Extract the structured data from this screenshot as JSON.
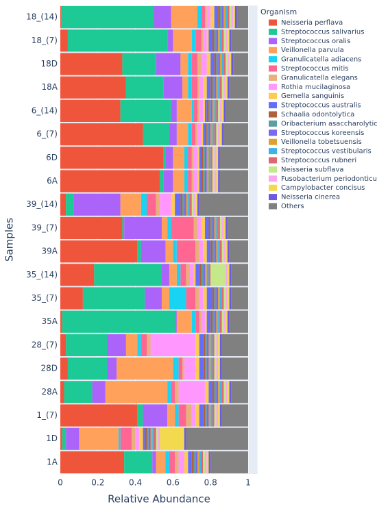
{
  "chart_data": {
    "type": "bar",
    "orientation": "horizontal",
    "stacked": true,
    "x_label": "Relative Abundance",
    "y_label": "Samples",
    "legend_title": "Organism",
    "legend_position": "right",
    "grid": true,
    "xlim": [
      0,
      1.05
    ],
    "xticks": [
      0,
      0.2,
      0.4,
      0.6,
      0.8,
      1
    ],
    "categories": [
      "18_(14)",
      "18_(7)",
      "18D",
      "18A",
      "6_(14)",
      "6_(7)",
      "6D",
      "6A",
      "39_(14)",
      "39_(7)",
      "39A",
      "35_(14)",
      "35_(7)",
      "35A",
      "28_(7)",
      "28D",
      "28A",
      "1_(7)",
      "1D",
      "1A"
    ],
    "series": [
      {
        "name": "Neisseria perflava",
        "color": "#EF553B",
        "values": [
          0.005,
          0.04,
          0.33,
          0.35,
          0.32,
          0.44,
          0.55,
          0.53,
          0.03,
          0.33,
          0.41,
          0.18,
          0.12,
          0.01,
          0.03,
          0.04,
          0.02,
          0.41,
          0.01,
          0.34
        ]
      },
      {
        "name": "Streptococcus salivarius",
        "color": "#1DC994",
        "values": [
          0.495,
          0.53,
          0.18,
          0.2,
          0.27,
          0.14,
          0.01,
          0.02,
          0.04,
          0.01,
          0.02,
          0.36,
          0.33,
          0.6,
          0.22,
          0.21,
          0.15,
          0.03,
          0.02,
          0.15
        ]
      },
      {
        "name": "Streptococcus oralis",
        "color": "#AB63FA",
        "values": [
          0.09,
          0.03,
          0.13,
          0.1,
          0.03,
          0.04,
          0.04,
          0.05,
          0.25,
          0.2,
          0.13,
          0.04,
          0.09,
          0.01,
          0.1,
          0.05,
          0.07,
          0.13,
          0.07,
          0.02
        ]
      },
      {
        "name": "Veillonella parvula",
        "color": "#FFA15A",
        "values": [
          0.14,
          0.1,
          0.04,
          0.03,
          0.08,
          0.06,
          0.06,
          0.06,
          0.11,
          0.03,
          0.04,
          0.04,
          0.04,
          0.08,
          0.06,
          0.3,
          0.33,
          0.04,
          0.21,
          0.05
        ]
      },
      {
        "name": "Granulicatella adiacens",
        "color": "#19D3F3",
        "values": [
          0.02,
          0.02,
          0.02,
          0.02,
          0.01,
          0.02,
          0.02,
          0.02,
          0.03,
          0.02,
          0.02,
          0.02,
          0.09,
          0.02,
          0.02,
          0.03,
          0.02,
          0.02,
          0.01,
          0.02
        ]
      },
      {
        "name": "Streptococcus mitis",
        "color": "#FF6692",
        "values": [
          0.02,
          0.03,
          0.03,
          0.03,
          0.02,
          0.02,
          0.02,
          0.02,
          0.05,
          0.12,
          0.1,
          0.03,
          0.05,
          0.02,
          0.03,
          0.02,
          0.02,
          0.04,
          0.06,
          0.03
        ]
      },
      {
        "name": "Granulicatella elegans",
        "color": "#E8B07A",
        "values": [
          0.01,
          0.01,
          0.02,
          0.01,
          0.01,
          0.01,
          0.01,
          0.01,
          0.02,
          0.02,
          0.02,
          0.02,
          0.02,
          0.01,
          0.02,
          0.01,
          0.02,
          0.03,
          0.02,
          0.02
        ]
      },
      {
        "name": "Rothia mucilaginosa",
        "color": "#FF97FF",
        "values": [
          0.02,
          0.02,
          0.03,
          0.02,
          0.02,
          0.02,
          0.02,
          0.02,
          0.06,
          0.02,
          0.02,
          0.02,
          0.02,
          0.02,
          0.24,
          0.06,
          0.14,
          0.02,
          0.02,
          0.03
        ]
      },
      {
        "name": "Gemella sanguinis",
        "color": "#FECB52",
        "values": [
          0.02,
          0.01,
          0.02,
          0.02,
          0.01,
          0.01,
          0.01,
          0.01,
          0.02,
          0.02,
          0.02,
          0.01,
          0.02,
          0.01,
          0.02,
          0.02,
          0.02,
          0.02,
          0.02,
          0.02
        ]
      },
      {
        "name": "Streptococcus australis",
        "color": "#636EFA",
        "values": [
          0.02,
          0.02,
          0.02,
          0.02,
          0.01,
          0.01,
          0.01,
          0.01,
          0.03,
          0.02,
          0.02,
          0.02,
          0.03,
          0.02,
          0.02,
          0.02,
          0.02,
          0.02,
          0.01,
          0.02
        ]
      },
      {
        "name": "Schaalia odontolytica",
        "color": "#B0603A",
        "values": [
          0.01,
          0.01,
          0.01,
          0.01,
          0.01,
          0.01,
          0.01,
          0.01,
          0.01,
          0.01,
          0.01,
          0.01,
          0.01,
          0.01,
          0.01,
          0.01,
          0.01,
          0.01,
          0.01,
          0.01
        ]
      },
      {
        "name": "Oribacterium asaccharolyticum",
        "color": "#5F9EA0",
        "values": [
          0.01,
          0.01,
          0.01,
          0.01,
          0.01,
          0.01,
          0.01,
          0.01,
          0.01,
          0.01,
          0.01,
          0.01,
          0.01,
          0.01,
          0.01,
          0.01,
          0.01,
          0.01,
          0.01,
          0.01
        ]
      },
      {
        "name": "Streptococcus koreensis",
        "color": "#7B68EE",
        "values": [
          0.01,
          0.01,
          0.01,
          0.01,
          0.01,
          0.01,
          0.01,
          0.01,
          0.01,
          0.01,
          0.01,
          0.01,
          0.01,
          0.01,
          0.01,
          0.01,
          0.01,
          0.01,
          0.01,
          0.01
        ]
      },
      {
        "name": "Veillonella tobetsuensis",
        "color": "#E0A030",
        "values": [
          0.01,
          0.01,
          0.01,
          0.01,
          0.01,
          0.01,
          0.01,
          0.01,
          0.01,
          0.01,
          0.01,
          0.01,
          0.01,
          0.01,
          0.01,
          0.01,
          0.01,
          0.01,
          0.01,
          0.01
        ]
      },
      {
        "name": "Streptococcus vestibularis",
        "color": "#3CB4E6",
        "values": [
          0.01,
          0.01,
          0.01,
          0.01,
          0.01,
          0.01,
          0.01,
          0.01,
          0.01,
          0.01,
          0.01,
          0.01,
          0.01,
          0.01,
          0.01,
          0.01,
          0.01,
          0.01,
          0.01,
          0.01
        ]
      },
      {
        "name": "Streptococcus rubneri",
        "color": "#E06670",
        "values": [
          0.01,
          0.01,
          0.01,
          0.01,
          0.01,
          0.01,
          0.01,
          0.01,
          0.01,
          0.01,
          0.01,
          0.01,
          0.01,
          0.01,
          0.01,
          0.01,
          0.01,
          0.01,
          0.01,
          0.01
        ]
      },
      {
        "name": "Neisseria subflava",
        "color": "#C5E88A",
        "values": [
          0.01,
          0.01,
          0.01,
          0.01,
          0.01,
          0.01,
          0.01,
          0.01,
          0.01,
          0.01,
          0.01,
          0.08,
          0.01,
          0.01,
          0.01,
          0.01,
          0.01,
          0.01,
          0.01,
          0.01
        ]
      },
      {
        "name": "Fusobacterium periodonticum",
        "color": "#F7A8F0",
        "values": [
          0.01,
          0.01,
          0.01,
          0.01,
          0.01,
          0.01,
          0.01,
          0.01,
          0.01,
          0.01,
          0.01,
          0.01,
          0.01,
          0.01,
          0.01,
          0.01,
          0.01,
          0.01,
          0.01,
          0.01
        ]
      },
      {
        "name": "Campylobacter concisus",
        "color": "#F2D94E",
        "values": [
          0.01,
          0.01,
          0.01,
          0.01,
          0.01,
          0.01,
          0.01,
          0.01,
          0.01,
          0.01,
          0.01,
          0.01,
          0.01,
          0.01,
          0.01,
          0.01,
          0.01,
          0.01,
          0.13,
          0.01
        ]
      },
      {
        "name": "Neisseria cinerea",
        "color": "#6A5ADF",
        "values": [
          0.01,
          0.01,
          0.01,
          0.01,
          0.01,
          0.01,
          0.01,
          0.01,
          0.01,
          0.01,
          0.01,
          0.01,
          0.01,
          0.01,
          0.01,
          0.01,
          0.01,
          0.01,
          0.01,
          0.01
        ]
      },
      {
        "name": "Others",
        "color": "#808080",
        "values": [
          0.06,
          0.09,
          0.08,
          0.1,
          0.12,
          0.13,
          0.15,
          0.15,
          0.26,
          0.11,
          0.1,
          0.09,
          0.09,
          0.1,
          0.14,
          0.14,
          0.09,
          0.14,
          0.33,
          0.2
        ]
      }
    ]
  }
}
